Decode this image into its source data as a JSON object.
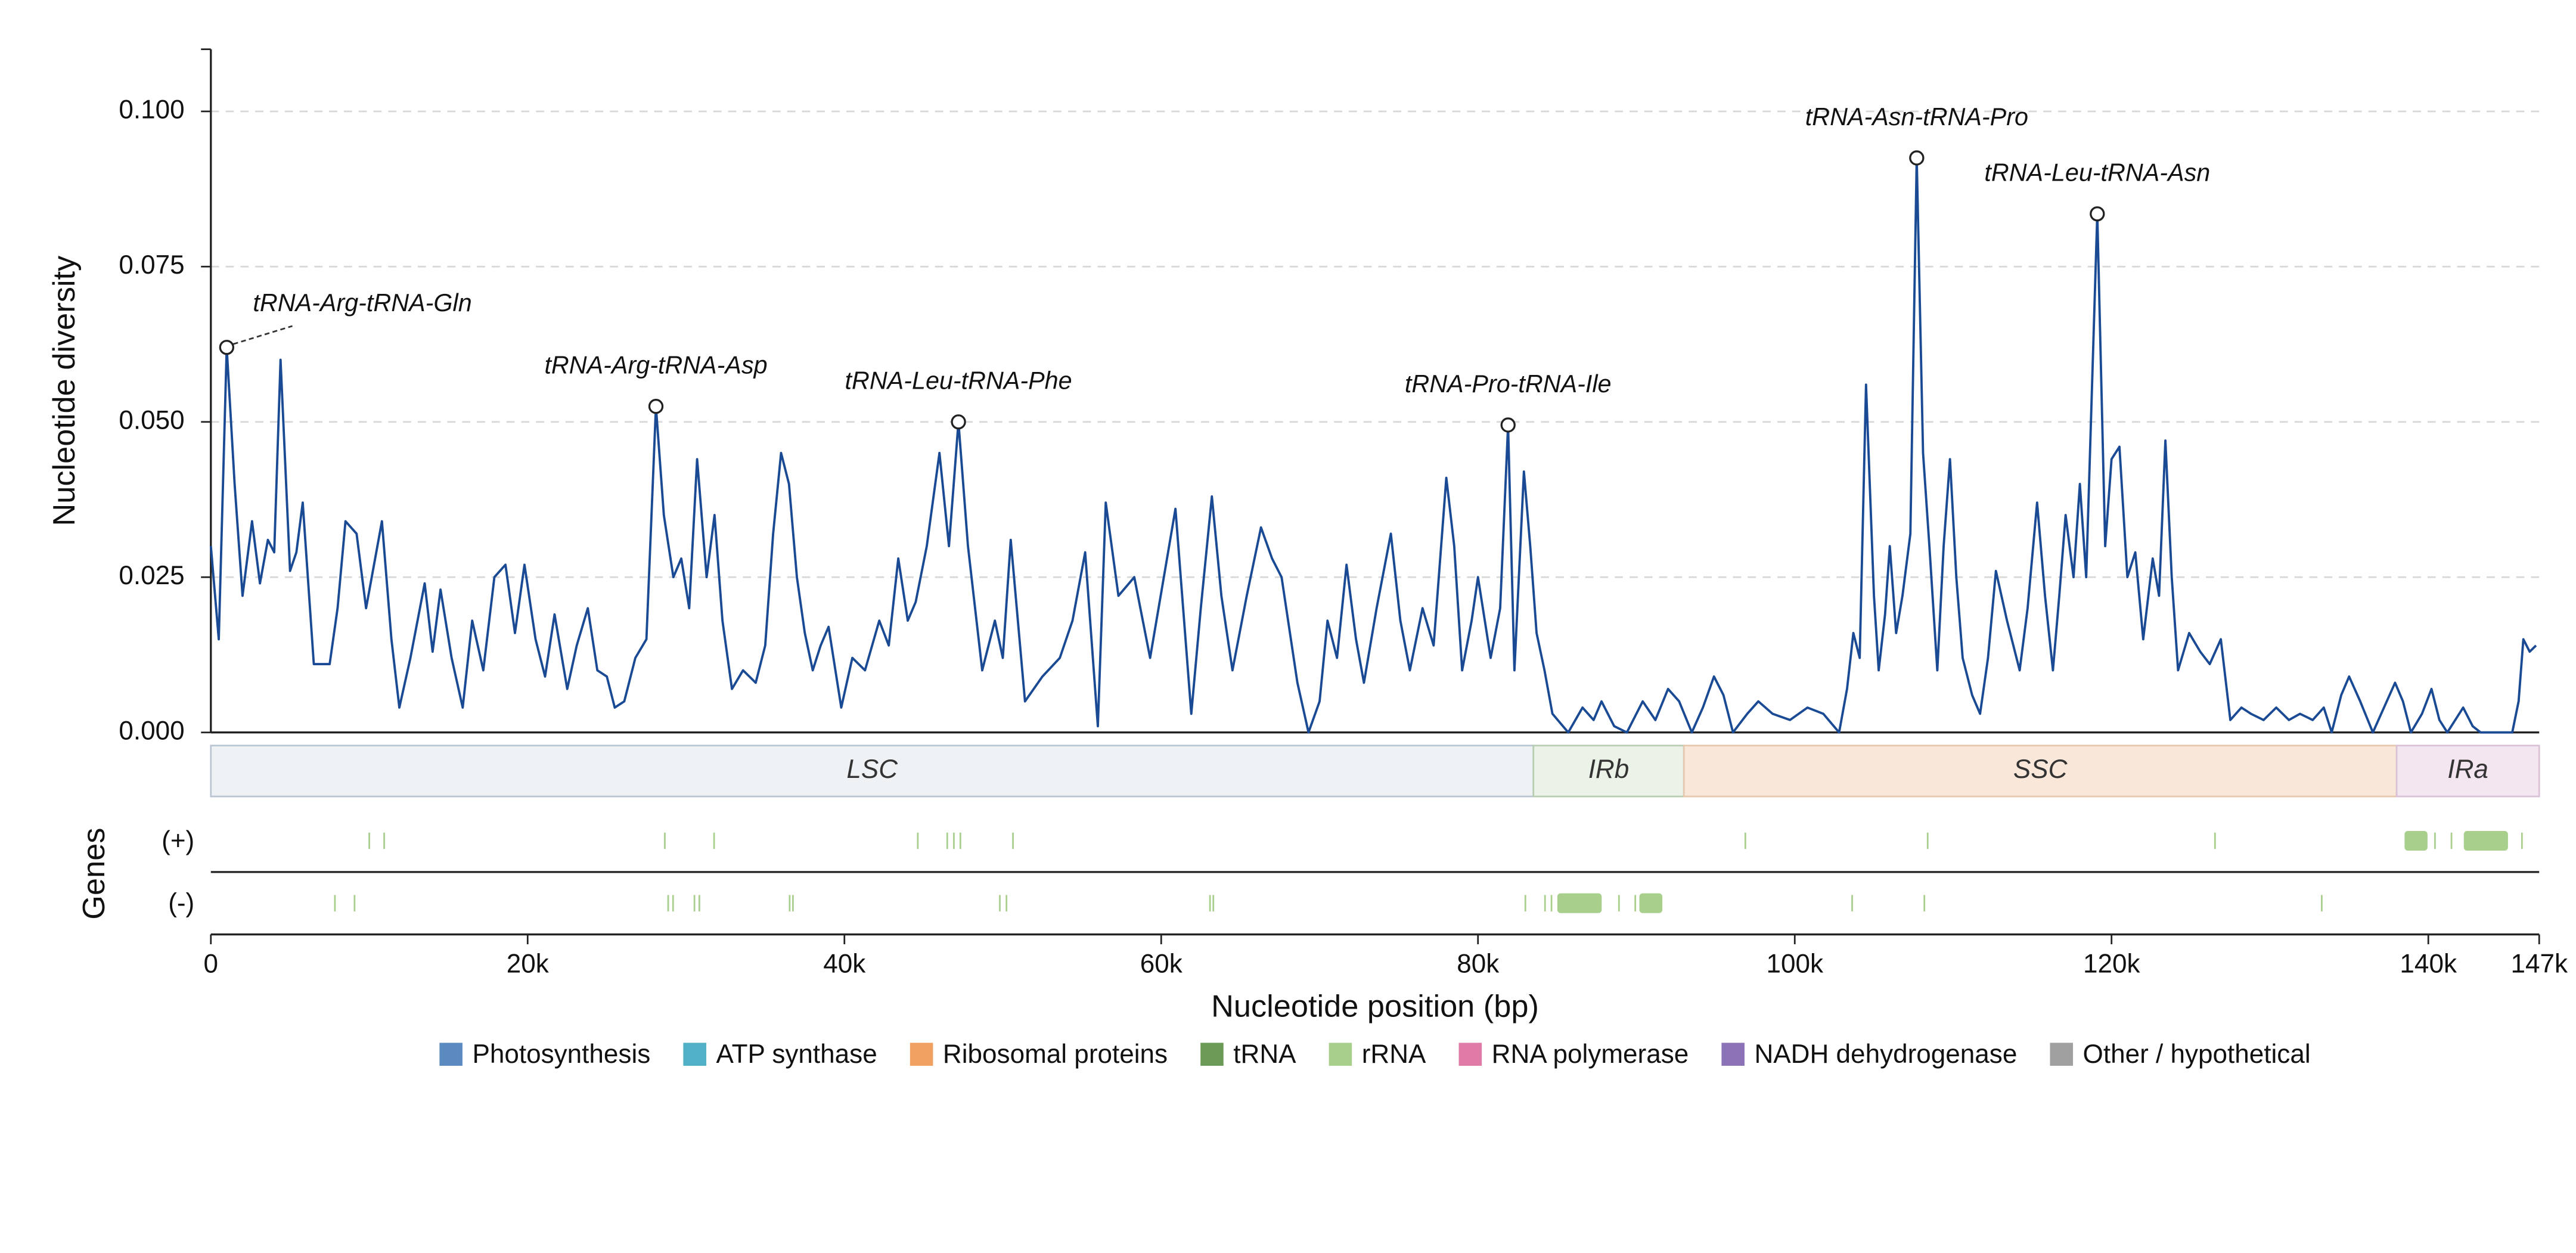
{
  "chart_data": {
    "type": "line",
    "y_label": "Nucleotide diversity",
    "x_label": "Nucleotide position (bp)",
    "color": "#1a4a94",
    "grid": true,
    "xlim": [
      0,
      147000
    ],
    "ylim": [
      0,
      0.11
    ],
    "xticks": [
      0,
      {
        "value": 20000,
        "label": "20k"
      },
      {
        "value": 40000,
        "label": "40k"
      },
      {
        "value": 60000,
        "label": "60k"
      },
      {
        "value": 80000,
        "label": "80k"
      },
      {
        "value": 100000,
        "label": "100k"
      },
      {
        "value": 120000,
        "label": "120k"
      },
      {
        "value": 140000,
        "label": "140k"
      },
      {
        "value": 147000,
        "label": "147k"
      }
    ],
    "yticks": [
      {
        "value": 0,
        "label": "0.000"
      },
      {
        "value": 0.025,
        "label": "0.025"
      },
      {
        "value": 0.05,
        "label": "0.050"
      },
      {
        "value": 0.075,
        "label": "0.075"
      },
      {
        "value": 0.1,
        "label": "0.100"
      }
    ],
    "x": [
      0,
      500,
      1000,
      1500,
      2000,
      2600,
      3100,
      3600,
      4000,
      4400,
      5000,
      5400,
      5800,
      6500,
      7500,
      8000,
      8500,
      9200,
      9800,
      10300,
      10800,
      11400,
      11900,
      12600,
      13500,
      14000,
      14500,
      15200,
      15900,
      16500,
      17200,
      17900,
      18600,
      19200,
      19800,
      20500,
      21100,
      21700,
      22500,
      23100,
      23800,
      24400,
      25000,
      25500,
      26100,
      26800,
      27500,
      28100,
      28600,
      29200,
      29700,
      30200,
      30700,
      31300,
      31800,
      32300,
      32900,
      33600,
      34400,
      35000,
      35500,
      36000,
      36500,
      37000,
      37500,
      38000,
      38500,
      39000,
      39800,
      40500,
      41300,
      42200,
      42800,
      43400,
      44000,
      44500,
      45200,
      46000,
      46600,
      47200,
      47800,
      48700,
      49500,
      50000,
      50500,
      51400,
      52500,
      53600,
      54400,
      55200,
      56000,
      56500,
      57300,
      58300,
      59300,
      60100,
      60900,
      61900,
      62500,
      63200,
      63800,
      64500,
      65400,
      66300,
      67000,
      67600,
      68600,
      69300,
      70000,
      70500,
      71100,
      71700,
      72300,
      72800,
      73600,
      74500,
      75100,
      75700,
      76500,
      77200,
      78000,
      78500,
      79000,
      79600,
      80000,
      80800,
      81400,
      81900,
      82300,
      82900,
      83300,
      83700,
      84200,
      84700,
      85700,
      86600,
      87300,
      87800,
      88600,
      89400,
      90400,
      91200,
      92000,
      92700,
      93500,
      94200,
      94900,
      95500,
      96100,
      97000,
      97700,
      98600,
      99700,
      100800,
      101800,
      102800,
      103300,
      103700,
      104100,
      104500,
      105000,
      105300,
      105700,
      106000,
      106400,
      106800,
      107300,
      107700,
      108100,
      108500,
      109000,
      109400,
      109800,
      110200,
      110600,
      111200,
      111700,
      112200,
      112700,
      113400,
      114200,
      114700,
      115300,
      115800,
      116300,
      116700,
      117100,
      117600,
      118000,
      118400,
      119100,
      119600,
      120000,
      120500,
      121000,
      121500,
      122000,
      122600,
      123000,
      123400,
      123800,
      124200,
      124900,
      125600,
      126200,
      126900,
      127500,
      128200,
      128800,
      129600,
      130400,
      131200,
      131900,
      132700,
      133400,
      133900,
      134500,
      135000,
      135700,
      136500,
      137200,
      137900,
      138400,
      138900,
      139600,
      140200,
      140700,
      141200,
      141700,
      142200,
      142800,
      143300,
      144300,
      145300,
      145700,
      146000,
      146400,
      146800
    ],
    "values": [
      0.03,
      0.015,
      0.062,
      0.04,
      0.022,
      0.034,
      0.024,
      0.031,
      0.029,
      0.06,
      0.026,
      0.029,
      0.037,
      0.011,
      0.011,
      0.02,
      0.034,
      0.032,
      0.02,
      0.027,
      0.034,
      0.015,
      0.004,
      0.012,
      0.024,
      0.013,
      0.023,
      0.012,
      0.004,
      0.018,
      0.01,
      0.025,
      0.027,
      0.016,
      0.027,
      0.015,
      0.009,
      0.019,
      0.007,
      0.014,
      0.02,
      0.01,
      0.009,
      0.004,
      0.005,
      0.012,
      0.015,
      0.0525,
      0.035,
      0.025,
      0.028,
      0.02,
      0.044,
      0.025,
      0.035,
      0.018,
      0.007,
      0.01,
      0.008,
      0.014,
      0.032,
      0.045,
      0.04,
      0.025,
      0.016,
      0.01,
      0.014,
      0.017,
      0.004,
      0.012,
      0.01,
      0.018,
      0.014,
      0.028,
      0.018,
      0.021,
      0.03,
      0.045,
      0.03,
      0.05,
      0.03,
      0.01,
      0.018,
      0.012,
      0.031,
      0.005,
      0.009,
      0.012,
      0.018,
      0.029,
      0.001,
      0.037,
      0.022,
      0.025,
      0.012,
      0.024,
      0.036,
      0.003,
      0.02,
      0.038,
      0.022,
      0.01,
      0.022,
      0.033,
      0.028,
      0.025,
      0.008,
      0.0,
      0.005,
      0.018,
      0.012,
      0.027,
      0.015,
      0.008,
      0.02,
      0.032,
      0.018,
      0.01,
      0.02,
      0.014,
      0.041,
      0.03,
      0.01,
      0.018,
      0.025,
      0.012,
      0.02,
      0.0495,
      0.01,
      0.042,
      0.03,
      0.016,
      0.01,
      0.003,
      0.0,
      0.004,
      0.002,
      0.005,
      0.001,
      0.0,
      0.005,
      0.002,
      0.007,
      0.005,
      0.0,
      0.004,
      0.009,
      0.006,
      0.0,
      0.003,
      0.005,
      0.003,
      0.002,
      0.004,
      0.003,
      0.0,
      0.007,
      0.016,
      0.012,
      0.056,
      0.022,
      0.01,
      0.019,
      0.03,
      0.016,
      0.022,
      0.032,
      0.0925,
      0.045,
      0.03,
      0.01,
      0.03,
      0.044,
      0.025,
      0.012,
      0.006,
      0.003,
      0.012,
      0.026,
      0.018,
      0.01,
      0.02,
      0.037,
      0.022,
      0.01,
      0.022,
      0.035,
      0.025,
      0.04,
      0.025,
      0.0835,
      0.03,
      0.044,
      0.046,
      0.025,
      0.029,
      0.015,
      0.028,
      0.022,
      0.047,
      0.025,
      0.01,
      0.016,
      0.013,
      0.011,
      0.015,
      0.002,
      0.004,
      0.003,
      0.002,
      0.004,
      0.002,
      0.003,
      0.002,
      0.004,
      0.0,
      0.006,
      0.009,
      0.005,
      0.0,
      0.004,
      0.008,
      0.005,
      0.0,
      0.003,
      0.007,
      0.002,
      0.0,
      0.002,
      0.004,
      0.001,
      0.0,
      0.0,
      0.0,
      0.005,
      0.015,
      0.013,
      0.014
    ],
    "annotations": [
      {
        "text": "tRNA-Arg-tRNA-Gln",
        "x": 1000,
        "y": 0.062
      },
      {
        "text": "tRNA-Arg-tRNA-Asp",
        "x": 28100,
        "y": 0.0525
      },
      {
        "text": "tRNA-Leu-tRNA-Phe",
        "x": 47200,
        "y": 0.05
      },
      {
        "text": "tRNA-Pro-tRNA-Ile",
        "x": 81900,
        "y": 0.0495
      },
      {
        "text": "tRNA-Asn-tRNA-Pro",
        "x": 107700,
        "y": 0.0925
      },
      {
        "text": "tRNA-Leu-tRNA-Asn",
        "x": 119100,
        "y": 0.0835
      }
    ],
    "regions": [
      {
        "name": "LSC",
        "start": 0,
        "end": 83500,
        "color": "#eef2f5",
        "stroke": "#b9c5d1"
      },
      {
        "name": "IRb",
        "start": 83500,
        "end": 93000,
        "color": "#ebf3e9",
        "stroke": "#b9cdb3"
      },
      {
        "name": "SSC",
        "start": 93000,
        "end": 138000,
        "color": "#f9e8da",
        "stroke": "#e5c8ae"
      },
      {
        "name": "IRa",
        "start": 138000,
        "end": 147000,
        "color": "#f3e6f1",
        "stroke": "#d9c2d5"
      }
    ],
    "genes_label": "Genes",
    "strand_labels": [
      "(+)",
      "(-)"
    ],
    "genes_plus": [
      {
        "start": 9950,
        "end": 10050,
        "color": "#a9cf8d"
      },
      {
        "start": 10890,
        "end": 10990,
        "color": "#a9cf8d"
      },
      {
        "start": 28610,
        "end": 28710,
        "color": "#a9cf8d"
      },
      {
        "start": 31720,
        "end": 31820,
        "color": "#a9cf8d"
      },
      {
        "start": 44580,
        "end": 44680,
        "color": "#a9cf8d"
      },
      {
        "start": 46440,
        "end": 46540,
        "color": "#a9cf8d"
      },
      {
        "start": 46860,
        "end": 46960,
        "color": "#a9cf8d"
      },
      {
        "start": 47270,
        "end": 47370,
        "color": "#a9cf8d"
      },
      {
        "start": 50590,
        "end": 50690,
        "color": "#a9cf8d"
      },
      {
        "start": 96830,
        "end": 96930,
        "color": "#a9cf8d"
      },
      {
        "start": 108340,
        "end": 108440,
        "color": "#a9cf8d"
      },
      {
        "start": 126480,
        "end": 126580,
        "color": "#a9cf8d"
      },
      {
        "start": 138500,
        "end": 139950,
        "color": "#a9cf8d"
      },
      {
        "start": 140370,
        "end": 140470,
        "color": "#a9cf8d"
      },
      {
        "start": 141410,
        "end": 141510,
        "color": "#a9cf8d"
      },
      {
        "start": 142240,
        "end": 145030,
        "color": "#a9cf8d"
      },
      {
        "start": 145860,
        "end": 145960,
        "color": "#a9cf8d"
      }
    ],
    "genes_minus": [
      {
        "start": 7780,
        "end": 7880,
        "color": "#a9cf8d"
      },
      {
        "start": 9020,
        "end": 9120,
        "color": "#a9cf8d"
      },
      {
        "start": 28820,
        "end": 28920,
        "color": "#a9cf8d"
      },
      {
        "start": 29130,
        "end": 29230,
        "color": "#a9cf8d"
      },
      {
        "start": 30480,
        "end": 30580,
        "color": "#a9cf8d"
      },
      {
        "start": 30790,
        "end": 30890,
        "color": "#a9cf8d"
      },
      {
        "start": 36490,
        "end": 36590,
        "color": "#a9cf8d"
      },
      {
        "start": 36700,
        "end": 36800,
        "color": "#a9cf8d"
      },
      {
        "start": 49760,
        "end": 49860,
        "color": "#a9cf8d"
      },
      {
        "start": 50180,
        "end": 50280,
        "color": "#a9cf8d"
      },
      {
        "start": 63030,
        "end": 63130,
        "color": "#a9cf8d"
      },
      {
        "start": 63240,
        "end": 63340,
        "color": "#a9cf8d"
      },
      {
        "start": 82940,
        "end": 83040,
        "color": "#a9cf8d"
      },
      {
        "start": 84180,
        "end": 84280,
        "color": "#a9cf8d"
      },
      {
        "start": 84590,
        "end": 84690,
        "color": "#a9cf8d"
      },
      {
        "start": 85010,
        "end": 87810,
        "color": "#a9cf8d"
      },
      {
        "start": 88850,
        "end": 88950,
        "color": "#a9cf8d"
      },
      {
        "start": 89880,
        "end": 89980,
        "color": "#a9cf8d"
      },
      {
        "start": 90190,
        "end": 91640,
        "color": "#a9cf8d"
      },
      {
        "start": 103570,
        "end": 103670,
        "color": "#a9cf8d"
      },
      {
        "start": 108130,
        "end": 108230,
        "color": "#a9cf8d"
      },
      {
        "start": 133220,
        "end": 133320,
        "color": "#a9cf8d"
      }
    ],
    "legend": [
      {
        "name": "Photosynthesis",
        "color": "#5b8ac0"
      },
      {
        "name": "ATP synthase",
        "color": "#4fb0c6"
      },
      {
        "name": "Ribosomal proteins",
        "color": "#f0a060"
      },
      {
        "name": "tRNA",
        "color": "#6a9a55"
      },
      {
        "name": "rRNA",
        "color": "#a9cf8d"
      },
      {
        "name": "RNA polymerase",
        "color": "#e07aa6"
      },
      {
        "name": "NADH dehydrogenase",
        "color": "#8c72b6"
      },
      {
        "name": "Other / hypothetical",
        "color": "#a0a0a0"
      }
    ]
  }
}
